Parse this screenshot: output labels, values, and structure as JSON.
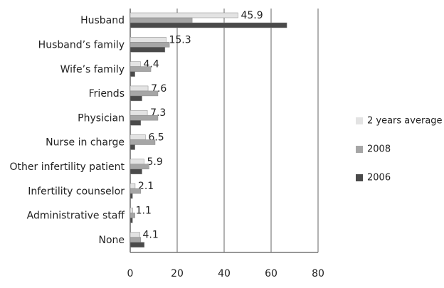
{
  "chart_data": {
    "type": "hbar",
    "categories": [
      "Husband",
      "Husband’s family",
      "Wife’s family",
      "Friends",
      "Physician",
      "Nurse in charge",
      "Other infertility patient",
      "Infertility counselor",
      "Administrative staff",
      "None"
    ],
    "series": [
      {
        "name": "2 years average",
        "color": "#e3e3e3",
        "values": [
          45.9,
          15.3,
          4.4,
          7.6,
          7.3,
          6.5,
          5.9,
          2.1,
          1.1,
          4.1
        ],
        "labeled": true
      },
      {
        "name": "2008",
        "color": "#a6a6a6",
        "values": [
          26.4,
          16.7,
          8.8,
          11.8,
          11.8,
          10.6,
          8,
          4.5,
          2,
          4.5
        ]
      },
      {
        "name": "2006",
        "color": "#4a4a4a",
        "values": [
          66.7,
          14.8,
          2,
          5,
          4.5,
          2,
          5,
          1,
          1,
          6
        ]
      }
    ],
    "xlim": [
      0,
      80
    ],
    "xticks": [
      0,
      20,
      40,
      60,
      80
    ],
    "grid": true,
    "legend": "right"
  }
}
